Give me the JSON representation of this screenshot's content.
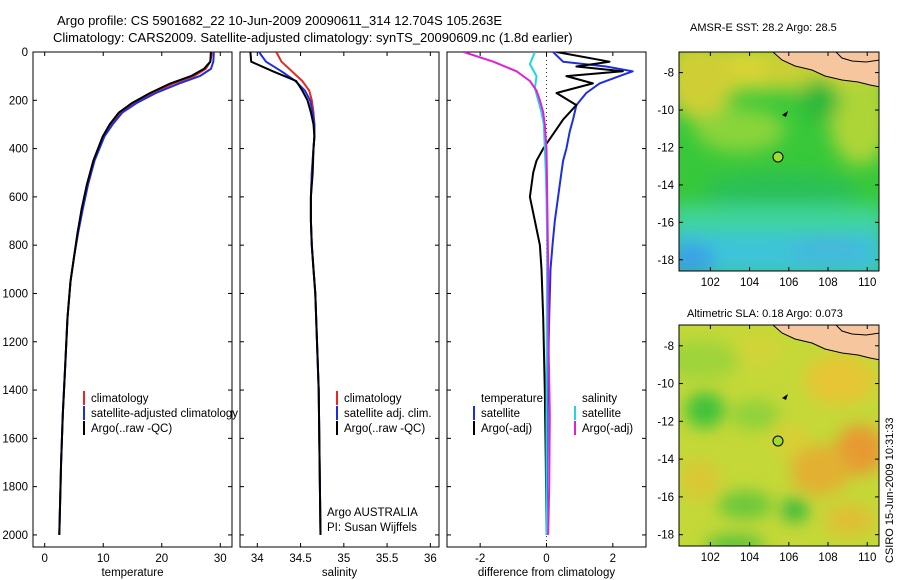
{
  "header": {
    "line1": "Argo profile: CS 5901682_22 10-Jun-2009 20090611_314 12.704S 105.263E",
    "line2": "Climatology: CARS2009. Satellite-adjusted climatology: synTS_20090609.nc (1.8d earlier)"
  },
  "colors": {
    "climatology": "#e8281e",
    "satellite": "#1c2fe0",
    "argo": "#000000",
    "satellite_diff": "#22d6e0",
    "argo_adj_diff": "#e020d8",
    "land": "#f6c79e"
  },
  "chart_data": [
    {
      "id": "temperature",
      "type": "line",
      "xlabel": "temperature",
      "ylabel": "",
      "xlim": [
        -2,
        32
      ],
      "ylim": [
        2050,
        0
      ],
      "xticks": [
        0,
        10,
        20,
        30
      ],
      "yticks": [
        0,
        200,
        400,
        600,
        800,
        1000,
        1200,
        1400,
        1600,
        1800,
        2000
      ],
      "legend": {
        "placement": "lower-right",
        "entries": [
          "climatology",
          "satellite-adjusted climatology",
          "Argo(..raw -QC)"
        ]
      },
      "series": [
        {
          "name": "climatology",
          "color": "#e8281e",
          "x": [
            28.6,
            28.3,
            27.5,
            25.5,
            22,
            18.5,
            15.5,
            13,
            11.3,
            10,
            8.4,
            7.3,
            6.4,
            5.6,
            5,
            4.4,
            3.9,
            3.5,
            3.1,
            2.8,
            2.5
          ],
          "y": [
            0,
            40,
            70,
            100,
            130,
            170,
            210,
            250,
            300,
            350,
            450,
            550,
            650,
            750,
            850,
            950,
            1100,
            1300,
            1500,
            1700,
            2000
          ]
        },
        {
          "name": "satellite-adjusted climatology",
          "color": "#1c2fe0",
          "x": [
            28.9,
            28.8,
            28.4,
            26.5,
            23,
            19,
            15.8,
            13.3,
            11.6,
            10.2,
            8.5,
            7.4,
            6.5,
            5.7,
            5,
            4.4,
            3.9,
            3.5,
            3.1,
            2.8,
            2.5
          ],
          "y": [
            0,
            40,
            70,
            100,
            130,
            170,
            210,
            250,
            300,
            350,
            450,
            550,
            650,
            750,
            850,
            950,
            1100,
            1300,
            1500,
            1700,
            2000
          ]
        },
        {
          "name": "Argo(..raw -QC)",
          "color": "#000000",
          "x": [
            28.4,
            28.3,
            27.2,
            25,
            21.5,
            18,
            15,
            12.7,
            11.1,
            9.9,
            8.3,
            7.2,
            6.3,
            5.6,
            5,
            4.4,
            3.9,
            3.5,
            3.1,
            2.8,
            2.5
          ],
          "y": [
            0,
            40,
            70,
            100,
            130,
            170,
            210,
            250,
            300,
            350,
            450,
            550,
            650,
            750,
            850,
            950,
            1100,
            1300,
            1500,
            1700,
            2000
          ]
        }
      ]
    },
    {
      "id": "salinity",
      "type": "line",
      "xlabel": "salinity",
      "ylabel": "",
      "xlim": [
        33.8,
        36.1
      ],
      "ylim": [
        2050,
        0
      ],
      "xticks": [
        34,
        34.5,
        35,
        35.5,
        36
      ],
      "xticklabels": [
        "34",
        "34.5",
        "35",
        "35.5",
        "36"
      ],
      "legend": {
        "placement": "lower-right",
        "entries": [
          "climatology",
          "satellite adj. clim.",
          "Argo(..raw -QC)"
        ]
      },
      "annotation": [
        "Argo AUSTRALIA",
        "PI: Susan Wijffels"
      ],
      "series": [
        {
          "name": "climatology",
          "color": "#e8281e",
          "x": [
            34.22,
            34.28,
            34.4,
            34.52,
            34.6,
            34.63,
            34.65,
            34.66,
            34.66,
            34.65,
            34.63,
            34.62,
            34.62,
            34.63,
            34.65,
            34.67,
            34.69,
            34.71,
            34.72,
            34.73
          ],
          "y": [
            0,
            40,
            80,
            120,
            160,
            200,
            250,
            300,
            350,
            400,
            500,
            600,
            700,
            800,
            900,
            1000,
            1200,
            1400,
            1700,
            2000
          ]
        },
        {
          "name": "satellite adj. clim.",
          "color": "#1c2fe0",
          "x": [
            34.02,
            34.1,
            34.28,
            34.44,
            34.55,
            34.61,
            34.64,
            34.66,
            34.66,
            34.65,
            34.63,
            34.62,
            34.62,
            34.63,
            34.65,
            34.67,
            34.69,
            34.71,
            34.72,
            34.73
          ],
          "y": [
            0,
            40,
            80,
            120,
            160,
            200,
            250,
            300,
            350,
            400,
            500,
            600,
            700,
            800,
            900,
            1000,
            1200,
            1400,
            1700,
            2000
          ]
        },
        {
          "name": "Argo(..raw -QC)",
          "color": "#000000",
          "x": [
            33.92,
            33.93,
            34.18,
            34.45,
            34.52,
            34.58,
            34.62,
            34.65,
            34.66,
            34.65,
            34.64,
            34.62,
            34.62,
            34.63,
            34.65,
            34.67,
            34.69,
            34.71,
            34.72,
            34.73
          ],
          "y": [
            0,
            40,
            80,
            120,
            160,
            200,
            250,
            300,
            350,
            400,
            500,
            600,
            700,
            800,
            900,
            1000,
            1200,
            1400,
            1700,
            2000
          ]
        }
      ]
    },
    {
      "id": "difference",
      "type": "line",
      "xlabel": "difference from climatology",
      "ylabel": "",
      "xlim": [
        -3,
        3
      ],
      "ylim": [
        2050,
        0
      ],
      "xticks": [
        -2,
        0,
        2
      ],
      "legend": {
        "placement": "lower-right",
        "entries": [
          "temperature",
          "satellite",
          "Argo(-adj)",
          "salinity",
          "satellite",
          "Argo(-adj)"
        ]
      },
      "series": [
        {
          "name": "temperature satellite",
          "color": "#1c2fe0",
          "x": [
            0.2,
            0.5,
            1.8,
            2.6,
            2.2,
            1.6,
            1.2,
            0.9,
            0.8,
            0.7,
            0.6,
            0.5,
            0.45,
            0.35,
            0.25,
            0.18,
            0.12,
            0.08,
            0.04,
            0.02,
            0.01
          ],
          "y": [
            0,
            40,
            60,
            80,
            100,
            130,
            170,
            220,
            280,
            330,
            400,
            450,
            500,
            600,
            700,
            800,
            900,
            1100,
            1400,
            1700,
            2000
          ]
        },
        {
          "name": "temperature Argo(-adj)",
          "color": "#000000",
          "x": [
            0.3,
            1.9,
            0.9,
            2.3,
            0.6,
            1.4,
            0.3,
            0.9,
            0.5,
            0.25,
            -0.1,
            -0.3,
            -0.4,
            -0.5,
            -0.35,
            -0.2,
            -0.15,
            -0.1,
            -0.05,
            -0.02,
            0
          ],
          "y": [
            0,
            40,
            60,
            80,
            100,
            130,
            170,
            220,
            280,
            330,
            400,
            450,
            500,
            600,
            700,
            800,
            900,
            1100,
            1400,
            1700,
            2000
          ]
        },
        {
          "name": "salinity satellite",
          "color": "#22d6e0",
          "x": [
            -0.35,
            -0.5,
            -0.3,
            -0.35,
            -0.25,
            -0.15,
            -0.08,
            -0.05,
            -0.02,
            0,
            0.02,
            0.01,
            0,
            0
          ],
          "y": [
            0,
            50,
            100,
            150,
            200,
            250,
            300,
            400,
            500,
            600,
            800,
            1100,
            1500,
            2000
          ]
        },
        {
          "name": "salinity Argo(-adj)",
          "color": "#e020d8",
          "x": [
            -2.5,
            -1.6,
            -0.9,
            -0.5,
            -0.3,
            -0.2,
            -0.1,
            -0.05,
            0,
            0.02,
            0.05,
            0.06,
            0.1,
            0.08,
            0.05
          ],
          "y": [
            0,
            40,
            80,
            120,
            160,
            200,
            250,
            300,
            400,
            600,
            900,
            1200,
            1500,
            1800,
            2000
          ]
        }
      ]
    },
    {
      "id": "sst-map",
      "type": "heatmap",
      "title": "AMSR-E SST: 28.2 Argo: 28.5",
      "xlim": [
        100.4,
        110.6
      ],
      "ylim": [
        -18.6,
        -6.9
      ],
      "xticks": [
        102,
        104,
        106,
        108,
        110
      ],
      "yticks": [
        -8,
        -10,
        -12,
        -14,
        -16,
        -18
      ],
      "argo_position": {
        "lon": 105.263,
        "lat": -12.704
      },
      "secondary_marker": {
        "lon": 105.5,
        "lat": -10.5
      }
    },
    {
      "id": "sla-map",
      "type": "heatmap",
      "title": "Altimetric SLA: 0.18 Argo: 0.073",
      "xlim": [
        100.4,
        110.6
      ],
      "ylim": [
        -18.6,
        -6.9
      ],
      "xticks": [
        102,
        104,
        106,
        108,
        110
      ],
      "yticks": [
        -8,
        -10,
        -12,
        -14,
        -16,
        -18
      ],
      "argo_position": {
        "lon": 105.263,
        "lat": -12.704
      },
      "secondary_marker": {
        "lon": 105.5,
        "lat": -10.5
      }
    }
  ],
  "credit": "CSIRO 15-Jun-2009 10:31:33"
}
